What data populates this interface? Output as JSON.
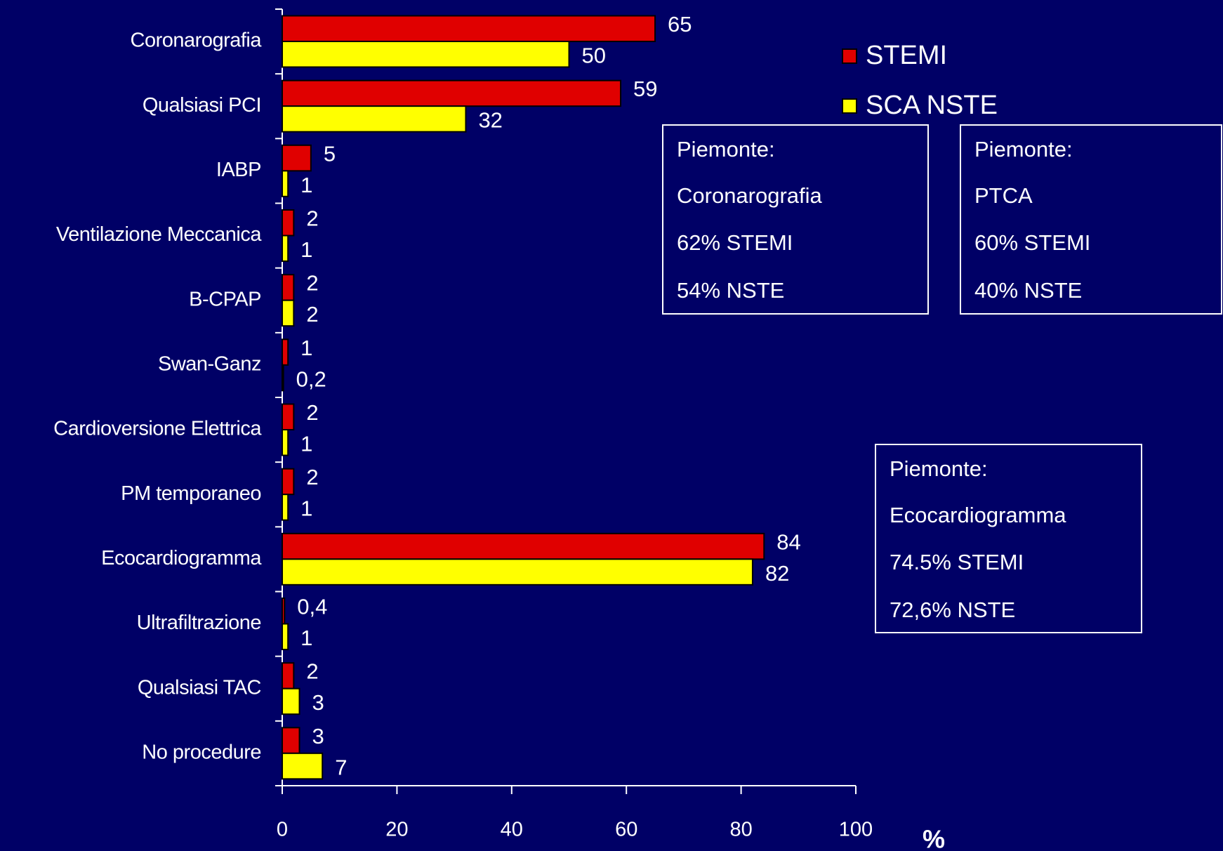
{
  "chart_data": {
    "type": "bar",
    "orientation": "horizontal",
    "categories": [
      "Coronarografia",
      "Qualsiasi PCI",
      "IABP",
      "Ventilazione Meccanica",
      "B-CPAP",
      "Swan-Ganz",
      "Cardioversione Elettrica",
      "PM temporaneo",
      "Ecocardiogramma",
      "Ultrafiltrazione",
      "Qualsiasi TAC",
      "No procedure"
    ],
    "series": [
      {
        "name": "STEMI",
        "color": "#e00000",
        "values": [
          65,
          59,
          5,
          2,
          2,
          1,
          2,
          2,
          84,
          0.4,
          2,
          3
        ],
        "value_labels": [
          "65",
          "59",
          "5",
          "2",
          "2",
          "1",
          "2",
          "2",
          "84",
          "0,4",
          "2",
          "3"
        ]
      },
      {
        "name": "SCA NSTE",
        "color": "#ffff00",
        "values": [
          50,
          32,
          1,
          1,
          2,
          0.2,
          1,
          1,
          82,
          1,
          3,
          7
        ],
        "value_labels": [
          "50",
          "32",
          "1",
          "1",
          "2",
          "0,2",
          "1",
          "1",
          "82",
          "1",
          "3",
          "7"
        ]
      }
    ],
    "xlabel": "%",
    "xlim": [
      0,
      100
    ],
    "xticks": [
      0,
      20,
      40,
      60,
      80,
      100
    ],
    "legend": "upper right",
    "annotations": [
      {
        "lines": [
          "Piemonte:",
          "Coronarografia",
          "62% STEMI",
          "54% NSTE"
        ]
      },
      {
        "lines": [
          "Piemonte:",
          "PTCA",
          "60% STEMI",
          "40% NSTE"
        ]
      },
      {
        "lines": [
          "Piemonte:",
          "Ecocardiogramma",
          "74.5% STEMI",
          "72,6% NSTE"
        ]
      }
    ]
  }
}
